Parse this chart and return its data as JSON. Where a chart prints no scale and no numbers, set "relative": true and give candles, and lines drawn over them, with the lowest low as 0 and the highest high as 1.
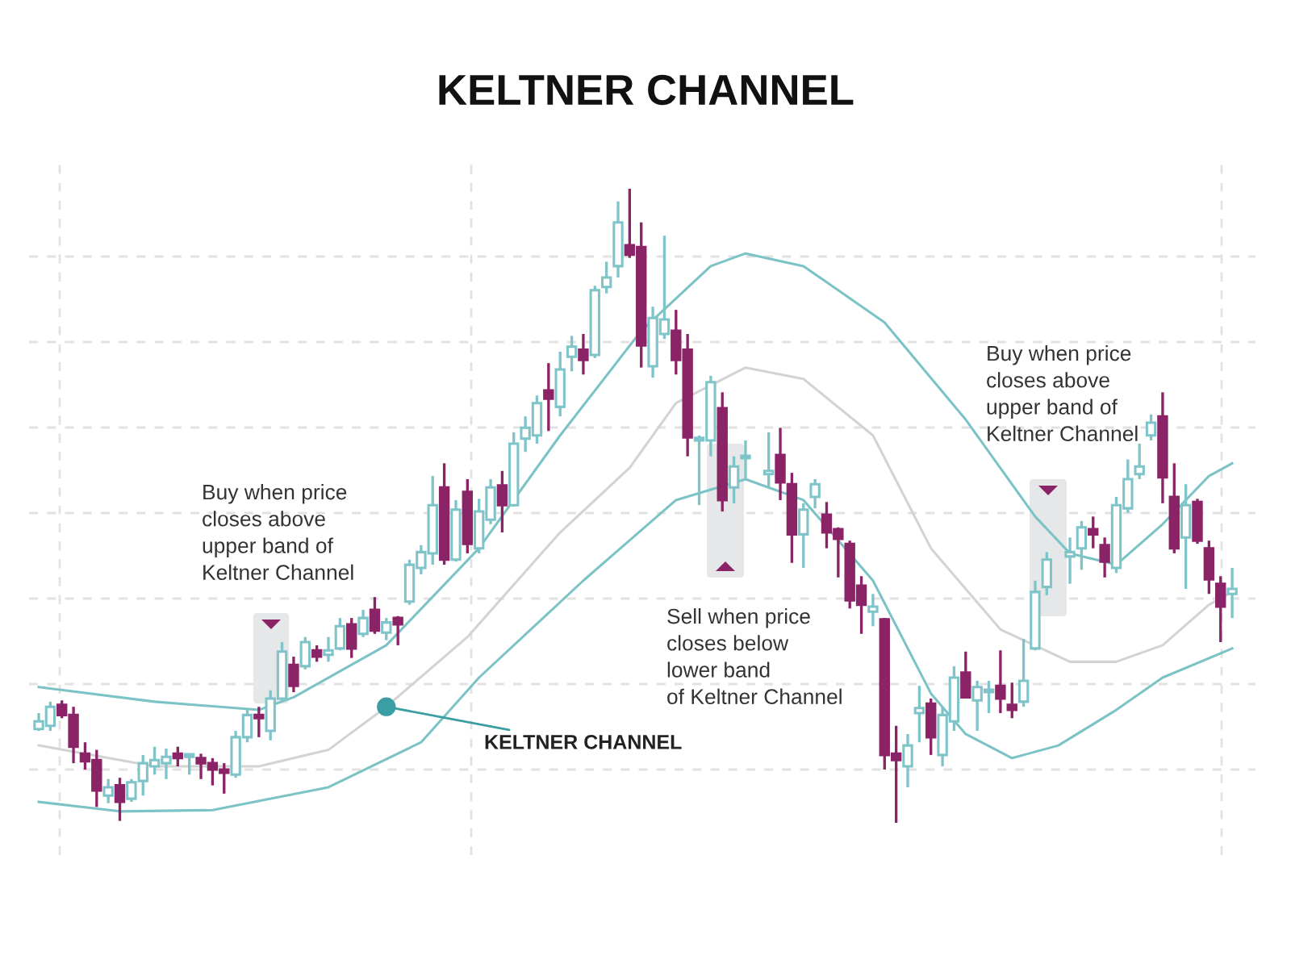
{
  "chart_data": {
    "type": "candlestick",
    "title": "KELTNER CHANNEL",
    "relative": true,
    "grid": true,
    "categories": [
      null,
      null,
      null,
      null,
      null,
      null,
      null,
      null,
      null,
      null,
      null,
      null,
      null,
      null,
      null,
      null,
      null,
      null,
      null,
      null,
      null,
      null,
      null,
      null,
      null,
      null,
      null,
      null,
      null,
      null,
      null,
      null,
      null,
      null,
      null,
      null,
      null,
      null,
      null,
      null,
      null,
      null,
      null,
      null,
      null,
      null,
      null,
      null,
      null,
      null,
      null,
      null,
      null,
      null,
      null,
      null,
      null,
      null,
      null,
      null,
      null,
      null,
      null,
      null,
      null,
      null,
      null,
      null,
      null,
      null,
      null,
      null,
      null,
      null,
      null,
      null,
      null,
      null,
      null,
      null,
      null,
      null,
      null,
      null,
      null,
      null,
      null,
      null,
      null,
      null,
      null,
      null,
      null,
      null,
      null,
      null,
      null,
      null,
      null,
      null,
      null,
      null,
      null,
      null
    ],
    "ohlc": [
      [
        0.148,
        0.173,
        0.145,
        0.16
      ],
      [
        0.153,
        0.191,
        0.145,
        0.183
      ],
      [
        0.186,
        0.193,
        0.165,
        0.17
      ],
      [
        0.17,
        0.183,
        0.094,
        0.12
      ],
      [
        0.109,
        0.127,
        0.084,
        0.097
      ],
      [
        0.099,
        0.115,
        0.025,
        0.051
      ],
      [
        0.043,
        0.069,
        0.031,
        0.056
      ],
      [
        0.059,
        0.071,
        0.003,
        0.033
      ],
      [
        0.038,
        0.069,
        0.033,
        0.064
      ],
      [
        0.066,
        0.107,
        0.043,
        0.094
      ],
      [
        0.089,
        0.12,
        0.076,
        0.099
      ],
      [
        0.094,
        0.117,
        0.069,
        0.104
      ],
      [
        0.109,
        0.12,
        0.089,
        0.102
      ],
      [
        0.104,
        0.109,
        0.076,
        0.107
      ],
      [
        0.102,
        0.109,
        0.069,
        0.094
      ],
      [
        0.094,
        0.102,
        0.059,
        0.084
      ],
      [
        0.084,
        0.094,
        0.046,
        0.079
      ],
      [
        0.076,
        0.145,
        0.071,
        0.135
      ],
      [
        0.135,
        0.178,
        0.127,
        0.17
      ],
      [
        0.17,
        0.183,
        0.135,
        0.165
      ],
      [
        0.145,
        0.209,
        0.13,
        0.196
      ],
      [
        0.196,
        0.285,
        0.191,
        0.27
      ],
      [
        0.249,
        0.262,
        0.206,
        0.216
      ],
      [
        0.247,
        0.293,
        0.242,
        0.285
      ],
      [
        0.272,
        0.28,
        0.254,
        0.262
      ],
      [
        0.265,
        0.293,
        0.254,
        0.272
      ],
      [
        0.275,
        0.323,
        0.272,
        0.31
      ],
      [
        0.313,
        0.323,
        0.26,
        0.275
      ],
      [
        0.298,
        0.336,
        0.293,
        0.323
      ],
      [
        0.336,
        0.356,
        0.298,
        0.303
      ],
      [
        0.3,
        0.323,
        0.288,
        0.316
      ],
      [
        0.323,
        0.326,
        0.28,
        0.313
      ],
      [
        0.349,
        0.415,
        0.344,
        0.407
      ],
      [
        0.402,
        0.438,
        0.392,
        0.427
      ],
      [
        0.425,
        0.547,
        0.407,
        0.501
      ],
      [
        0.529,
        0.567,
        0.407,
        0.415
      ],
      [
        0.415,
        0.509,
        0.412,
        0.494
      ],
      [
        0.522,
        0.542,
        0.425,
        0.44
      ],
      [
        0.433,
        0.511,
        0.425,
        0.491
      ],
      [
        0.478,
        0.542,
        0.471,
        0.529
      ],
      [
        0.532,
        0.555,
        0.458,
        0.501
      ],
      [
        0.501,
        0.616,
        0.499,
        0.598
      ],
      [
        0.606,
        0.641,
        0.585,
        0.623
      ],
      [
        0.611,
        0.674,
        0.598,
        0.662
      ],
      [
        0.682,
        0.725,
        0.618,
        0.669
      ],
      [
        0.656,
        0.743,
        0.641,
        0.715
      ],
      [
        0.735,
        0.768,
        0.712,
        0.751
      ],
      [
        0.746,
        0.771,
        0.707,
        0.73
      ],
      [
        0.738,
        0.847,
        0.733,
        0.84
      ],
      [
        0.845,
        0.885,
        0.835,
        0.86
      ],
      [
        0.878,
        0.98,
        0.86,
        0.947
      ],
      [
        0.911,
        1,
        0.891,
        0.896
      ],
      [
        0.908,
        0.947,
        0.718,
        0.753
      ],
      [
        0.72,
        0.814,
        0.702,
        0.796
      ],
      [
        0.771,
        0.926,
        0.763,
        0.794
      ],
      [
        0.776,
        0.809,
        0.707,
        0.73
      ],
      [
        0.746,
        0.771,
        0.578,
        0.608
      ],
      [
        0.603,
        0.611,
        0.501,
        0.606
      ],
      [
        0.603,
        0.705,
        0.578,
        0.695
      ],
      [
        0.654,
        0.679,
        0.491,
        0.509
      ],
      [
        0.529,
        0.578,
        0.504,
        0.562
      ],
      [
        0.575,
        0.603,
        0.542,
        0.578
      ],
      null,
      [
        0.55,
        0.616,
        0.527,
        0.555
      ],
      [
        0.58,
        0.623,
        0.509,
        0.537
      ],
      [
        0.534,
        0.552,
        0.41,
        0.455
      ],
      [
        0.455,
        0.504,
        0.402,
        0.494
      ],
      [
        0.514,
        0.542,
        0.496,
        0.534
      ],
      [
        0.486,
        0.506,
        0.433,
        0.458
      ],
      [
        0.463,
        0.466,
        0.387,
        0.448
      ],
      [
        0.44,
        0.445,
        0.338,
        0.351
      ],
      [
        0.374,
        0.389,
        0.298,
        0.344
      ],
      [
        0.333,
        0.361,
        0.31,
        0.341
      ],
      [
        0.321,
        0.323,
        0.084,
        0.107
      ],
      [
        0.109,
        0.153,
        0,
        0.099
      ],
      [
        0.089,
        0.14,
        0.056,
        0.122
      ],
      [
        0.173,
        0.216,
        0.127,
        0.181
      ],
      [
        0.188,
        0.196,
        0.107,
        0.135
      ],
      [
        0.107,
        0.183,
        0.089,
        0.17
      ],
      [
        0.16,
        0.247,
        0.145,
        0.229
      ],
      [
        0.237,
        0.27,
        0.196,
        0.198
      ],
      [
        0.193,
        0.224,
        0.145,
        0.214
      ],
      [
        0.206,
        0.224,
        0.173,
        0.209
      ],
      [
        0.216,
        0.272,
        0.173,
        0.196
      ],
      [
        0.186,
        0.221,
        0.165,
        0.178
      ],
      [
        0.191,
        0.29,
        0.183,
        0.224
      ],
      [
        0.275,
        0.382,
        0.272,
        0.364
      ],
      [
        0.372,
        0.427,
        0.359,
        0.415
      ],
      null,
      [
        0.42,
        0.45,
        0.377,
        0.427
      ],
      [
        0.433,
        0.476,
        0.399,
        0.466
      ],
      [
        0.463,
        0.483,
        0.433,
        0.455
      ],
      [
        0.438,
        0.45,
        0.387,
        0.412
      ],
      [
        0.402,
        0.514,
        0.394,
        0.501
      ],
      [
        0.496,
        0.573,
        0.489,
        0.542
      ],
      [
        0.55,
        0.598,
        0.542,
        0.562
      ],
      [
        0.611,
        0.644,
        0.603,
        0.631
      ],
      [
        0.641,
        0.679,
        0.504,
        0.545
      ],
      [
        0.514,
        0.567,
        0.425,
        0.433
      ],
      [
        0.45,
        0.534,
        0.369,
        0.501
      ],
      [
        0.506,
        0.511,
        0.44,
        0.445
      ],
      [
        0.433,
        0.445,
        0.361,
        0.384
      ],
      [
        0.377,
        0.389,
        0.285,
        0.341
      ],
      [
        0.361,
        0.402,
        0.323,
        0.369
      ]
    ],
    "colors": [
      "#7ec4c8",
      "#7ec4c8",
      "#8b2367",
      "#8b2367",
      "#8b2367",
      "#8b2367",
      "#7ec4c8",
      "#8b2367",
      "#7ec4c8",
      "#7ec4c8",
      "#7ec4c8",
      "#7ec4c8",
      "#8b2367",
      "#7ec4c8",
      "#8b2367",
      "#8b2367",
      "#8b2367",
      "#7ec4c8",
      "#7ec4c8",
      "#8b2367",
      "#7ec4c8",
      "#7ec4c8",
      "#8b2367",
      "#7ec4c8",
      "#8b2367",
      "#7ec4c8",
      "#7ec4c8",
      "#8b2367",
      "#7ec4c8",
      "#8b2367",
      "#7ec4c8",
      "#8b2367",
      "#7ec4c8",
      "#7ec4c8",
      "#7ec4c8",
      "#8b2367",
      "#7ec4c8",
      "#8b2367",
      "#7ec4c8",
      "#7ec4c8",
      "#8b2367",
      "#7ec4c8",
      "#7ec4c8",
      "#7ec4c8",
      "#8b2367",
      "#7ec4c8",
      "#7ec4c8",
      "#8b2367",
      "#7ec4c8",
      "#7ec4c8",
      "#7ec4c8",
      "#8b2367",
      "#8b2367",
      "#7ec4c8",
      "#7ec4c8",
      "#8b2367",
      "#8b2367",
      "#7ec4c8",
      "#7ec4c8",
      "#8b2367",
      "#7ec4c8",
      "#7ec4c8",
      null,
      "#7ec4c8",
      "#8b2367",
      "#8b2367",
      "#7ec4c8",
      "#7ec4c8",
      "#8b2367",
      "#8b2367",
      "#8b2367",
      "#8b2367",
      "#7ec4c8",
      "#8b2367",
      "#8b2367",
      "#7ec4c8",
      "#7ec4c8",
      "#8b2367",
      "#7ec4c8",
      "#7ec4c8",
      "#8b2367",
      "#7ec4c8",
      "#7ec4c8",
      "#8b2367",
      "#8b2367",
      "#7ec4c8",
      "#7ec4c8",
      "#7ec4c8",
      null,
      "#7ec4c8",
      "#7ec4c8",
      "#8b2367",
      "#8b2367",
      "#7ec4c8",
      "#7ec4c8",
      "#7ec4c8",
      "#7ec4c8",
      "#8b2367",
      "#8b2367",
      "#7ec4c8",
      "#8b2367",
      "#8b2367",
      "#8b2367",
      "#7ec4c8"
    ],
    "series": [
      {
        "type": "line",
        "color": "#7cc3c6",
        "values": [
          0.214,
          null,
          null,
          null,
          null,
          null,
          null,
          null,
          null,
          null,
          0.191,
          null,
          null,
          null,
          null,
          null,
          null,
          null,
          null,
          0.178,
          null,
          null,
          0.198,
          null,
          null,
          null,
          null,
          null,
          null,
          null,
          0.28,
          null,
          null,
          null,
          null,
          null,
          null,
          null,
          0.433,
          null,
          null,
          null,
          null,
          null,
          null,
          0.611,
          null,
          null,
          null,
          null,
          null,
          null,
          0.776,
          null,
          null,
          null,
          null,
          null,
          0.878,
          null,
          null,
          0.898,
          null,
          null,
          null,
          null,
          0.878,
          null,
          null,
          null,
          null,
          null,
          null,
          0.789,
          null,
          null,
          null,
          null,
          null,
          null,
          0.636,
          null,
          null,
          null,
          null,
          null,
          0.483,
          null,
          null,
          0.425,
          null,
          null,
          null,
          0.407,
          null,
          null,
          null,
          0.471,
          null,
          null,
          null,
          0.547,
          null,
          0.567
        ]
      },
      {
        "type": "line",
        "color": "#d3d3d3",
        "values": [
          0.122,
          null,
          null,
          null,
          null,
          null,
          null,
          null,
          null,
          null,
          0.089,
          null,
          null,
          null,
          null,
          null,
          null,
          null,
          null,
          0.089,
          null,
          null,
          null,
          null,
          null,
          0.115,
          null,
          null,
          null,
          null,
          0.183,
          null,
          null,
          null,
          null,
          null,
          null,
          0.293,
          null,
          null,
          null,
          null,
          null,
          null,
          null,
          0.458,
          null,
          null,
          null,
          null,
          null,
          0.56,
          null,
          null,
          null,
          0.662,
          null,
          null,
          null,
          null,
          null,
          0.718,
          null,
          null,
          null,
          null,
          0.7,
          null,
          null,
          null,
          null,
          null,
          0.611,
          null,
          null,
          null,
          null,
          0.433,
          null,
          null,
          null,
          null,
          null,
          0.305,
          null,
          null,
          null,
          null,
          null,
          0.254,
          null,
          null,
          null,
          0.254,
          null,
          null,
          null,
          0.28,
          null,
          null,
          null,
          0.344,
          null,
          0.364
        ]
      },
      {
        "type": "line",
        "color": "#7cc3c6",
        "values": [
          0.033,
          null,
          null,
          null,
          null,
          null,
          null,
          0.018,
          null,
          null,
          null,
          null,
          null,
          null,
          null,
          0.02,
          null,
          null,
          null,
          null,
          null,
          null,
          null,
          null,
          null,
          0.056,
          null,
          null,
          null,
          null,
          null,
          null,
          null,
          0.127,
          null,
          null,
          null,
          null,
          0.229,
          null,
          null,
          null,
          null,
          null,
          null,
          null,
          null,
          0.382,
          null,
          null,
          null,
          null,
          null,
          null,
          null,
          0.509,
          null,
          null,
          null,
          null,
          null,
          0.542,
          null,
          null,
          null,
          null,
          0.509,
          null,
          null,
          null,
          null,
          null,
          0.382,
          null,
          null,
          null,
          null,
          0.204,
          null,
          null,
          0.14,
          null,
          null,
          null,
          0.102,
          null,
          null,
          null,
          0.122,
          null,
          null,
          null,
          null,
          0.178,
          null,
          null,
          null,
          0.229,
          null,
          null,
          null,
          null,
          null,
          0.275
        ]
      }
    ],
    "annotations": [
      "Buy when price\ncloses above\nupper band of\nKeltner Channel",
      "Sell when price\ncloses below\nlower band\nof Keltner Channel",
      "Buy when price\ncloses above\nupper band of\nKeltner Channel",
      "KELTNER CHANNEL"
    ]
  }
}
